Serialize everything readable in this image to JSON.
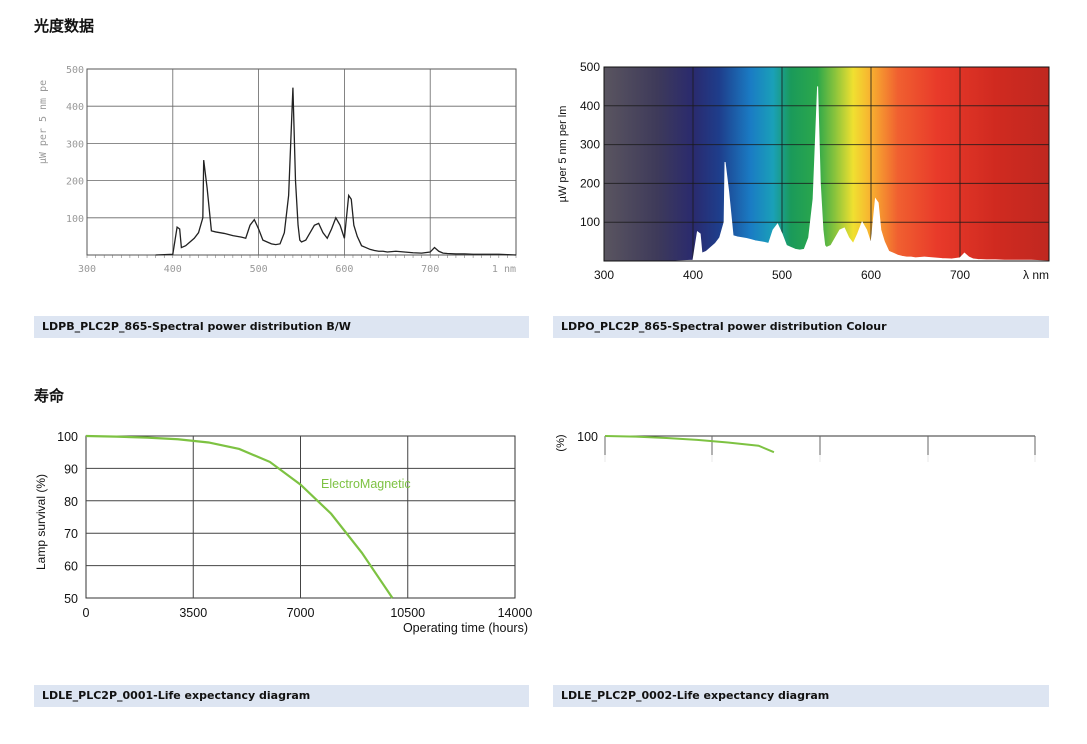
{
  "sections": {
    "spectral_title": "光度数据",
    "life_title": "寿命"
  },
  "captions": {
    "bw": "LDPB_PLC2P_865-Spectral power distribution B/W",
    "colour": "LDPO_PLC2P_865-Spectral power distribution Colour",
    "life1": "LDLE_PLC2P_0001-Life expectancy diagram",
    "life2": "LDLE_PLC2P_0002-Life expectancy diagram"
  },
  "chart_data": [
    {
      "id": "spd_bw",
      "type": "line",
      "title": "",
      "xlabel": "nm",
      "ylabel": "µW per 5 nm pe",
      "xlim": [
        300,
        800
      ],
      "ylim": [
        0,
        500
      ],
      "x_ticks": [
        "300",
        "400",
        "500",
        "600",
        "700"
      ],
      "y_ticks": [
        "100",
        "200",
        "300",
        "400",
        "500"
      ],
      "grid": true,
      "series": [
        {
          "x": [
            380,
            400,
            405,
            408,
            410,
            415,
            420,
            425,
            430,
            435,
            436,
            440,
            445,
            450,
            455,
            460,
            465,
            470,
            475,
            480,
            485,
            490,
            495,
            500,
            505,
            510,
            515,
            520,
            525,
            530,
            535,
            540,
            543,
            546,
            548,
            550,
            555,
            560,
            565,
            570,
            575,
            580,
            585,
            590,
            595,
            600,
            605,
            608,
            611,
            615,
            620,
            625,
            630,
            635,
            640,
            645,
            650,
            660,
            670,
            680,
            690,
            700,
            705,
            710,
            715,
            720,
            730,
            740,
            750,
            760,
            770,
            780,
            790,
            800
          ],
          "y": [
            0,
            2,
            75,
            70,
            20,
            25,
            35,
            45,
            60,
            100,
            255,
            180,
            65,
            62,
            60,
            58,
            55,
            52,
            50,
            48,
            45,
            80,
            95,
            70,
            40,
            35,
            30,
            28,
            30,
            60,
            160,
            450,
            200,
            80,
            40,
            35,
            40,
            60,
            80,
            85,
            60,
            45,
            70,
            100,
            80,
            45,
            160,
            150,
            80,
            50,
            25,
            20,
            15,
            12,
            10,
            10,
            8,
            10,
            8,
            6,
            5,
            8,
            20,
            10,
            5,
            4,
            3,
            3,
            2,
            2,
            2,
            2,
            1,
            0
          ]
        }
      ]
    },
    {
      "id": "spd_colour",
      "type": "area",
      "title": "",
      "xlabel": "λ nm",
      "ylabel": "µW per 5 nm per lm",
      "xlim": [
        300,
        800
      ],
      "ylim": [
        0,
        500
      ],
      "x_ticks": [
        "300",
        "400",
        "500",
        "600",
        "700",
        "λ nm"
      ],
      "y_ticks": [
        "100",
        "200",
        "300",
        "400",
        "500"
      ],
      "grid": true,
      "series": [
        {
          "x": [
            380,
            400,
            405,
            408,
            410,
            415,
            420,
            425,
            430,
            435,
            436,
            440,
            445,
            450,
            455,
            460,
            465,
            470,
            475,
            480,
            485,
            490,
            495,
            500,
            505,
            510,
            515,
            520,
            525,
            530,
            535,
            540,
            543,
            546,
            548,
            550,
            555,
            560,
            565,
            570,
            575,
            580,
            585,
            590,
            595,
            600,
            605,
            608,
            611,
            615,
            620,
            625,
            630,
            635,
            640,
            645,
            650,
            660,
            670,
            680,
            690,
            700,
            705,
            710,
            715,
            720,
            730,
            740,
            750,
            760,
            770,
            780,
            790,
            800
          ],
          "y": [
            0,
            2,
            75,
            70,
            20,
            25,
            35,
            45,
            60,
            100,
            255,
            180,
            65,
            62,
            60,
            58,
            55,
            52,
            50,
            48,
            45,
            80,
            95,
            70,
            40,
            35,
            30,
            28,
            30,
            60,
            160,
            450,
            200,
            80,
            40,
            35,
            40,
            60,
            80,
            85,
            60,
            45,
            70,
            100,
            80,
            45,
            160,
            150,
            80,
            50,
            25,
            20,
            15,
            12,
            10,
            10,
            8,
            10,
            8,
            6,
            5,
            8,
            20,
            10,
            5,
            4,
            3,
            3,
            2,
            2,
            2,
            2,
            1,
            0
          ]
        }
      ]
    },
    {
      "id": "life_em",
      "type": "line",
      "title": "",
      "xlabel": "Operating time (hours)",
      "ylabel": "Lamp survival  (%)",
      "xlim": [
        0,
        14000
      ],
      "ylim": [
        50,
        100
      ],
      "x_ticks": [
        "0",
        "3500",
        "7000",
        "10500",
        "14000"
      ],
      "y_ticks": [
        "50",
        "60",
        "70",
        "80",
        "90",
        "100"
      ],
      "grid": true,
      "series": [
        {
          "name": "ElectroMagnetic",
          "x": [
            0,
            1000,
            2000,
            3000,
            4000,
            5000,
            6000,
            7000,
            8000,
            9000,
            10000
          ],
          "y": [
            100,
            99.8,
            99.5,
            99,
            98,
            96,
            92,
            85,
            76,
            64,
            50
          ]
        }
      ]
    },
    {
      "id": "life_2",
      "type": "line",
      "title": "",
      "xlabel": "",
      "ylabel": "(%)",
      "ylim": [
        50,
        100
      ],
      "y_ticks": [
        "100"
      ],
      "grid": true,
      "series": [
        {
          "x": [
            0,
            1000,
            2000,
            3000,
            4000,
            5000,
            5500
          ],
          "y": [
            100,
            99.8,
            99.4,
            98.8,
            98,
            97,
            95
          ]
        }
      ]
    }
  ],
  "colors": {
    "caption_bg": "#dde5f2",
    "life_curve": "#7dc242",
    "grid": "#555555",
    "bw_line": "#222222"
  }
}
